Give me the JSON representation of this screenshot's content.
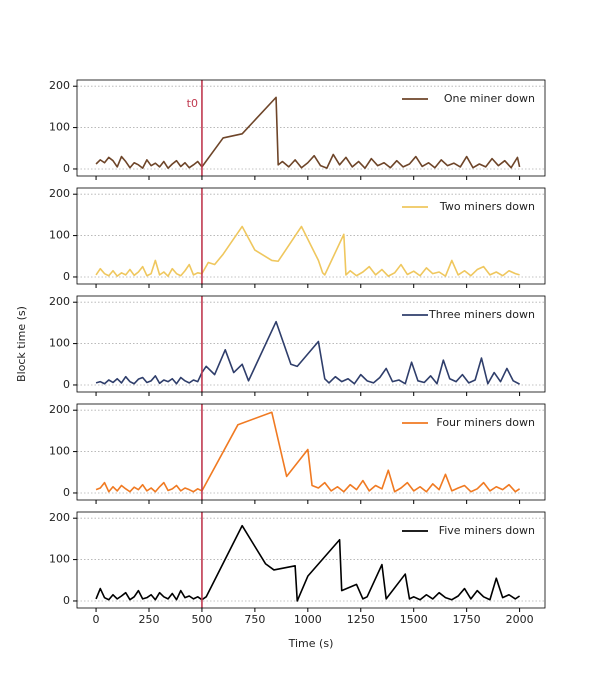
{
  "chart_data": [
    {
      "type": "line",
      "series": [
        {
          "name": "One miner down",
          "color": "#6e4529",
          "x": [
            0,
            20,
            40,
            60,
            80,
            100,
            120,
            140,
            160,
            180,
            200,
            220,
            240,
            260,
            280,
            300,
            320,
            340,
            360,
            380,
            400,
            420,
            440,
            460,
            480,
            500,
            600,
            690,
            850,
            860,
            880,
            910,
            940,
            970,
            1000,
            1030,
            1060,
            1090,
            1120,
            1150,
            1180,
            1210,
            1240,
            1270,
            1300,
            1330,
            1360,
            1390,
            1420,
            1450,
            1480,
            1510,
            1540,
            1570,
            1600,
            1630,
            1660,
            1690,
            1720,
            1750,
            1780,
            1810,
            1840,
            1870,
            1900,
            1930,
            1960,
            1990,
            2000
          ],
          "values": [
            12,
            22,
            15,
            28,
            20,
            5,
            30,
            18,
            3,
            15,
            10,
            2,
            22,
            8,
            14,
            5,
            18,
            2,
            12,
            20,
            6,
            15,
            3,
            10,
            18,
            5,
            75,
            85,
            173,
            10,
            18,
            5,
            22,
            3,
            15,
            32,
            8,
            2,
            35,
            10,
            28,
            5,
            18,
            2,
            25,
            8,
            15,
            3,
            20,
            5,
            12,
            30,
            6,
            15,
            3,
            22,
            8,
            14,
            5,
            30,
            3,
            12,
            5,
            25,
            8,
            20,
            3,
            28,
            5
          ]
        }
      ],
      "xlim": [
        -90,
        2120
      ],
      "xticks": [
        0,
        250,
        500,
        750,
        1000,
        1250,
        1500,
        1750,
        2000
      ],
      "xticklabels": false,
      "ylim": [
        -17,
        215
      ],
      "yticks": [
        0,
        100,
        200
      ],
      "grid": true,
      "vline": {
        "x": 500,
        "color": "#c0394f",
        "label": "t0"
      }
    },
    {
      "type": "line",
      "series": [
        {
          "name": "Two miners down",
          "color": "#efc75e",
          "x": [
            0,
            20,
            40,
            60,
            80,
            100,
            120,
            140,
            160,
            180,
            200,
            220,
            240,
            260,
            280,
            300,
            320,
            340,
            360,
            380,
            400,
            420,
            440,
            460,
            480,
            500,
            530,
            560,
            600,
            690,
            750,
            830,
            860,
            970,
            1050,
            1070,
            1080,
            1170,
            1180,
            1200,
            1230,
            1260,
            1290,
            1320,
            1350,
            1380,
            1410,
            1440,
            1470,
            1500,
            1530,
            1560,
            1590,
            1620,
            1650,
            1680,
            1710,
            1740,
            1770,
            1800,
            1830,
            1860,
            1890,
            1920,
            1950,
            1980,
            2000
          ],
          "values": [
            5,
            20,
            8,
            3,
            15,
            2,
            10,
            5,
            18,
            4,
            12,
            25,
            3,
            8,
            40,
            5,
            12,
            2,
            20,
            8,
            3,
            15,
            30,
            5,
            10,
            8,
            35,
            30,
            55,
            122,
            65,
            40,
            38,
            122,
            40,
            10,
            5,
            103,
            5,
            15,
            3,
            12,
            25,
            5,
            18,
            2,
            10,
            30,
            6,
            14,
            3,
            22,
            8,
            12,
            2,
            40,
            5,
            15,
            3,
            18,
            25,
            5,
            12,
            3,
            15,
            8,
            5
          ]
        }
      ],
      "xlim": [
        -90,
        2120
      ],
      "xticks": [
        0,
        250,
        500,
        750,
        1000,
        1250,
        1500,
        1750,
        2000
      ],
      "xticklabels": false,
      "ylim": [
        -17,
        215
      ],
      "yticks": [
        0,
        100,
        200
      ],
      "grid": true,
      "vline": {
        "x": 500,
        "color": "#c0394f"
      }
    },
    {
      "type": "line",
      "ylabel": "Block time (s)",
      "series": [
        {
          "name": "Three miners down",
          "color": "#2f3e6b",
          "x": [
            0,
            20,
            40,
            60,
            80,
            100,
            120,
            140,
            160,
            180,
            200,
            220,
            240,
            260,
            280,
            300,
            320,
            340,
            360,
            380,
            400,
            420,
            440,
            460,
            480,
            500,
            520,
            560,
            610,
            650,
            690,
            720,
            850,
            920,
            950,
            1050,
            1080,
            1100,
            1130,
            1160,
            1190,
            1220,
            1250,
            1280,
            1310,
            1340,
            1370,
            1400,
            1430,
            1460,
            1490,
            1520,
            1550,
            1580,
            1610,
            1640,
            1670,
            1700,
            1730,
            1760,
            1790,
            1820,
            1850,
            1880,
            1910,
            1940,
            1970,
            2000
          ],
          "values": [
            5,
            8,
            3,
            12,
            6,
            15,
            5,
            20,
            8,
            3,
            14,
            18,
            6,
            10,
            22,
            4,
            12,
            8,
            15,
            3,
            18,
            10,
            5,
            12,
            8,
            30,
            45,
            25,
            85,
            30,
            50,
            10,
            153,
            50,
            45,
            105,
            15,
            5,
            20,
            8,
            15,
            3,
            25,
            10,
            5,
            18,
            40,
            8,
            12,
            3,
            55,
            10,
            6,
            22,
            3,
            60,
            15,
            8,
            25,
            5,
            12,
            65,
            3,
            30,
            8,
            40,
            10,
            2
          ]
        }
      ],
      "xlim": [
        -90,
        2120
      ],
      "xticks": [
        0,
        250,
        500,
        750,
        1000,
        1250,
        1500,
        1750,
        2000
      ],
      "xticklabels": false,
      "ylim": [
        -17,
        215
      ],
      "yticks": [
        0,
        100,
        200
      ],
      "grid": true,
      "vline": {
        "x": 500,
        "color": "#c0394f"
      }
    },
    {
      "type": "line",
      "series": [
        {
          "name": "Four miners down",
          "color": "#f07a22",
          "x": [
            0,
            20,
            40,
            60,
            80,
            100,
            120,
            140,
            160,
            180,
            200,
            220,
            240,
            260,
            280,
            300,
            320,
            340,
            360,
            380,
            400,
            420,
            440,
            460,
            480,
            500,
            670,
            830,
            900,
            1000,
            1020,
            1050,
            1080,
            1110,
            1140,
            1170,
            1200,
            1230,
            1260,
            1290,
            1320,
            1350,
            1380,
            1410,
            1440,
            1470,
            1500,
            1530,
            1560,
            1590,
            1620,
            1650,
            1680,
            1710,
            1740,
            1770,
            1800,
            1830,
            1860,
            1890,
            1920,
            1950,
            1980,
            2000
          ],
          "values": [
            8,
            12,
            25,
            3,
            15,
            5,
            18,
            10,
            3,
            14,
            8,
            20,
            5,
            12,
            3,
            15,
            25,
            6,
            10,
            18,
            5,
            12,
            8,
            3,
            10,
            5,
            165,
            195,
            40,
            105,
            18,
            12,
            25,
            5,
            15,
            3,
            20,
            8,
            30,
            5,
            18,
            10,
            55,
            3,
            12,
            25,
            5,
            15,
            3,
            22,
            8,
            45,
            5,
            12,
            18,
            3,
            10,
            25,
            5,
            15,
            8,
            20,
            3,
            10
          ]
        }
      ],
      "xlim": [
        -90,
        2120
      ],
      "xticks": [
        0,
        250,
        500,
        750,
        1000,
        1250,
        1500,
        1750,
        2000
      ],
      "xticklabels": false,
      "ylim": [
        -17,
        215
      ],
      "yticks": [
        0,
        100,
        200
      ],
      "grid": true,
      "vline": {
        "x": 500,
        "color": "#c0394f"
      }
    },
    {
      "type": "line",
      "xlabel": "Time (s)",
      "series": [
        {
          "name": "Five miners down",
          "color": "#000000",
          "x": [
            0,
            20,
            40,
            60,
            80,
            100,
            120,
            140,
            160,
            180,
            200,
            220,
            240,
            260,
            280,
            300,
            320,
            340,
            360,
            380,
            400,
            420,
            440,
            460,
            480,
            500,
            520,
            690,
            800,
            840,
            940,
            950,
            1000,
            1150,
            1160,
            1230,
            1260,
            1280,
            1350,
            1370,
            1460,
            1480,
            1500,
            1530,
            1560,
            1590,
            1620,
            1650,
            1680,
            1710,
            1740,
            1770,
            1800,
            1830,
            1860,
            1890,
            1920,
            1950,
            1980,
            2000
          ],
          "values": [
            5,
            30,
            8,
            3,
            15,
            5,
            12,
            20,
            3,
            10,
            25,
            5,
            8,
            15,
            3,
            20,
            10,
            5,
            18,
            3,
            25,
            8,
            12,
            5,
            10,
            3,
            10,
            182,
            90,
            75,
            85,
            0,
            60,
            148,
            25,
            40,
            5,
            10,
            88,
            5,
            65,
            5,
            10,
            3,
            15,
            5,
            20,
            8,
            3,
            12,
            30,
            5,
            25,
            10,
            3,
            55,
            8,
            15,
            5,
            12
          ]
        }
      ],
      "xlim": [
        -90,
        2120
      ],
      "xticks": [
        0,
        250,
        500,
        750,
        1000,
        1250,
        1500,
        1750,
        2000
      ],
      "xticklabels": true,
      "ylim": [
        -17,
        215
      ],
      "yticks": [
        0,
        100,
        200
      ],
      "grid": true,
      "vline": {
        "x": 500,
        "color": "#c0394f"
      }
    }
  ]
}
